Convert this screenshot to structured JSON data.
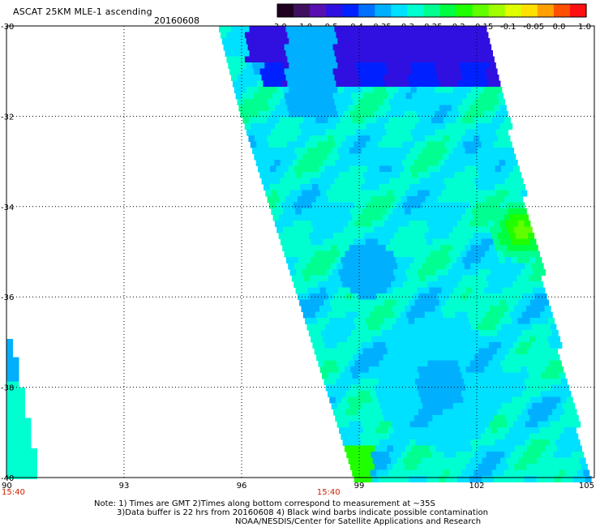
{
  "title": "ASCAT 25KM MLE-1 ascending",
  "date": "20160608",
  "colorbar": {
    "ticks": [
      "-3.0",
      "-1.0",
      "-0.5",
      "-0.4",
      "-0.35",
      "-0.3",
      "-0.25",
      "-0.2",
      "-0.15",
      "-0.1",
      "-0.05",
      "0.0",
      "1.0"
    ],
    "colors": [
      "#200020",
      "#401060",
      "#5a10b0",
      "#3010e0",
      "#0020ff",
      "#0070ff",
      "#00b0ff",
      "#00e0ff",
      "#00ffd0",
      "#00ff90",
      "#00ff40",
      "#20ff00",
      "#60ff00",
      "#a0ff00",
      "#e0ff00",
      "#ffe000",
      "#ffa000",
      "#ff5000",
      "#ff1010"
    ]
  },
  "map": {
    "lat_labels": [
      "-30",
      "-32",
      "-34",
      "-36",
      "-38",
      "-40"
    ],
    "lon_labels": [
      "90",
      "93",
      "96",
      "99",
      "102",
      "105"
    ],
    "lat_range": [
      -40,
      -30
    ],
    "lon_range": [
      90,
      105
    ],
    "times": [
      {
        "label": "15:40",
        "lon": 90
      },
      {
        "label": "15:40",
        "lon": 98.5
      }
    ],
    "grid": true
  },
  "notes": [
    "Note: 1) Times are GMT 2)Times along bottom correspond to measurement at ~35S",
    "3)Data buffer is 22 hrs from 20160608 4) Black wind barbs indicate possible contamination",
    "NOAA/NESDIS/Center for Satellite Applications and Research"
  ]
}
